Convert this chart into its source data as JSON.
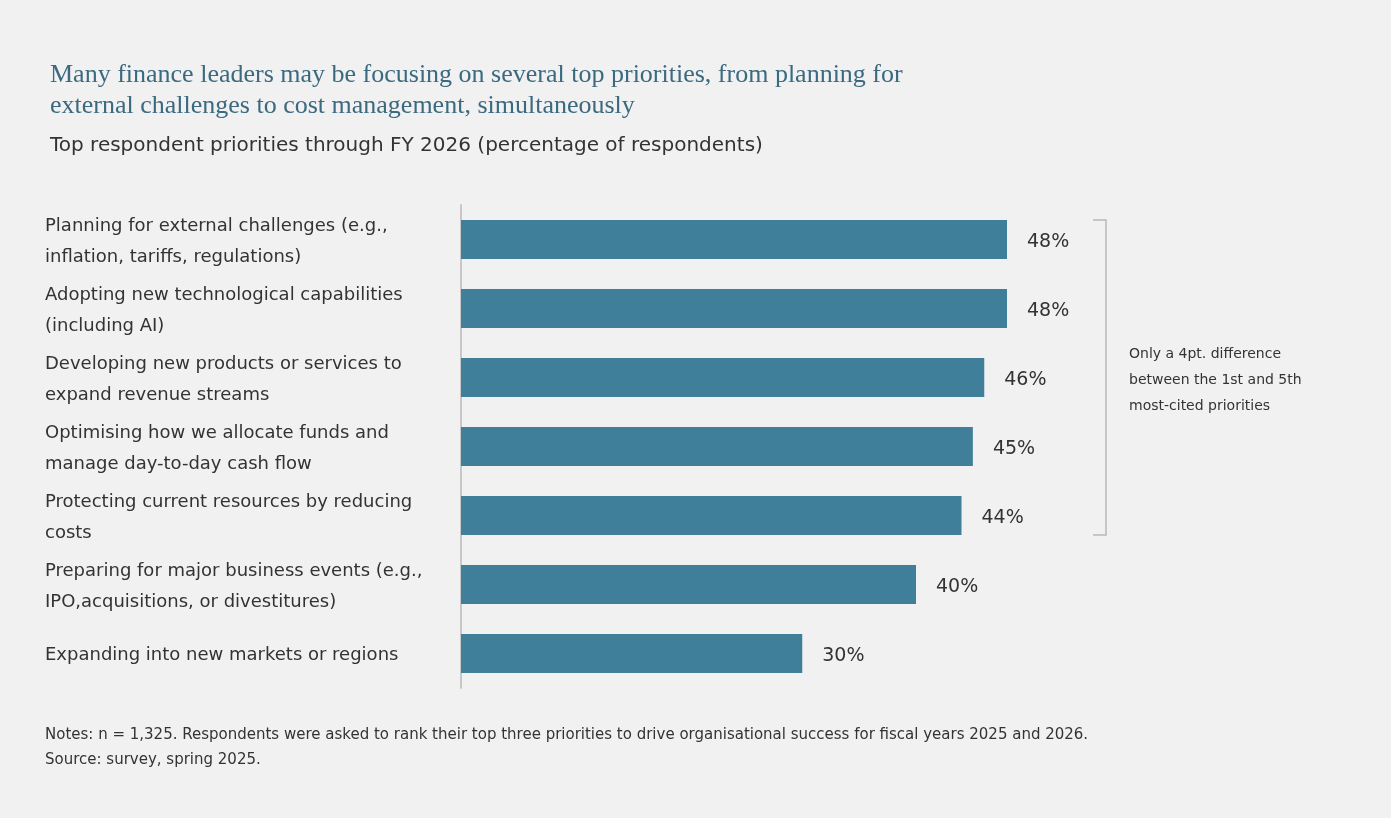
{
  "chart_data": {
    "type": "bar",
    "orientation": "horizontal",
    "title": "Many finance leaders may be focusing on several top priorities, from planning for external challenges to cost management, simultaneously",
    "subtitle": "Top respondent priorities through FY 2026 (percentage of respondents)",
    "categories": [
      "Planning for external challenges (e.g., inflation, tariffs, regulations)",
      "Adopting new technological capabilities (including AI)",
      "Developing new products or services to expand revenue streams",
      "Optimising how we allocate funds and manage day-to-day cash flow",
      "Protecting current resources by reducing costs",
      "Preparing for major business events (e.g., IPO,acquisitions, or divestitures)",
      "Expanding into new markets or regions"
    ],
    "values": [
      48,
      48,
      46,
      45,
      44,
      40,
      30
    ],
    "value_labels": [
      "48%",
      "48%",
      "46%",
      "45%",
      "44%",
      "40%",
      "30%"
    ],
    "color": "#407f9a",
    "annotations": [
      "Only a 4pt. difference between the 1st and 5th most-cited priorities",
      "Notes: n = 1,325. Respondents were asked to rank their top three priorities to drive organisational success for fiscal years 2025 and 2026.",
      "Source: survey, spring 2025."
    ]
  }
}
